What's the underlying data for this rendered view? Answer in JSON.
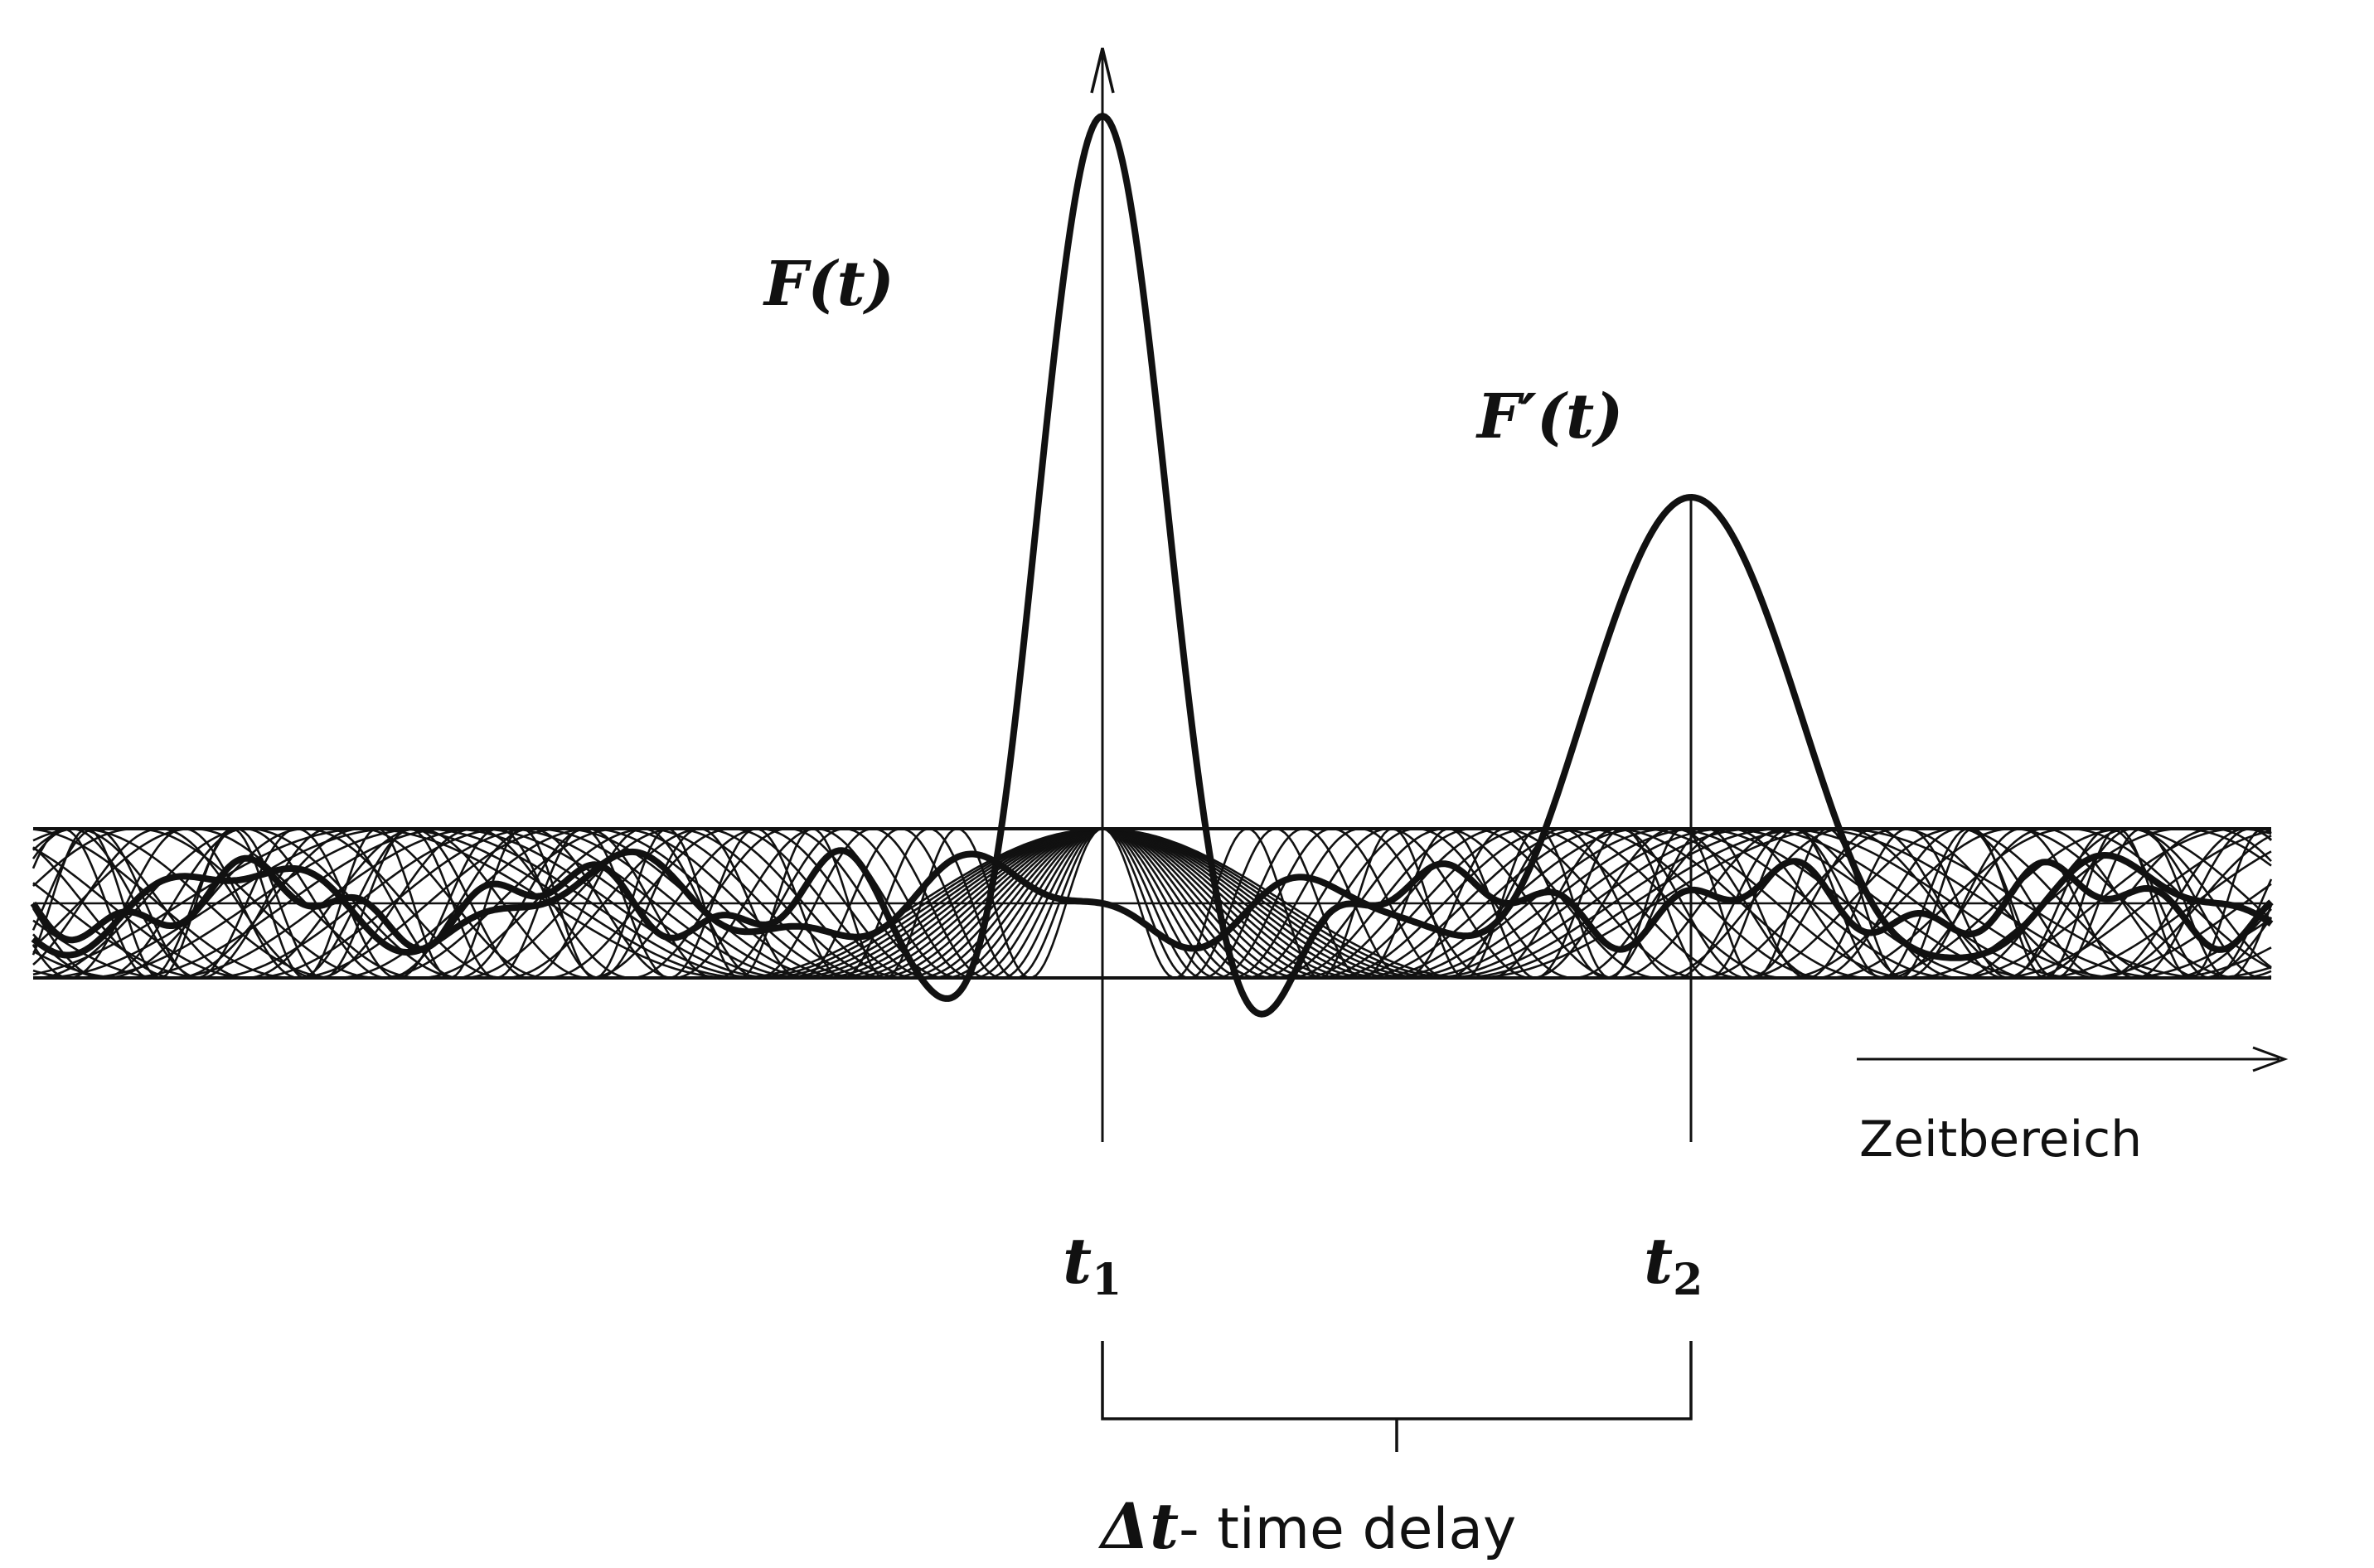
{
  "labels": {
    "f_of_t": "F(t)",
    "f_prime_of_t": "F′(t)",
    "x_axis": "Zeitbereich",
    "t1": "t",
    "t1_sub": "1",
    "t2": "t",
    "t2_sub": "2",
    "delay_symbol": "Δt",
    "delay_text": "- time delay"
  },
  "colors": {
    "ink": "#111111",
    "background": "#ffffff"
  }
}
